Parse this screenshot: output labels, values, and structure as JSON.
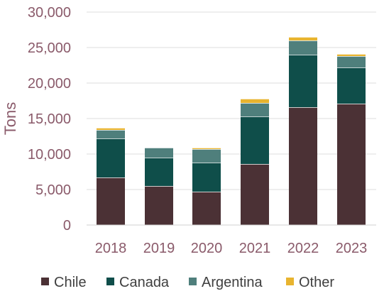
{
  "chart_data": {
    "type": "bar",
    "stacked": true,
    "categories": [
      "2018",
      "2019",
      "2020",
      "2021",
      "2022",
      "2023"
    ],
    "series": [
      {
        "name": "Chile",
        "color": "#4b3135",
        "values": [
          6700,
          5500,
          4700,
          8600,
          16600,
          17100
        ]
      },
      {
        "name": "Canada",
        "color": "#0f4e4a",
        "values": [
          5500,
          4000,
          4100,
          6700,
          7400,
          5100
        ]
      },
      {
        "name": "Argentina",
        "color": "#4f7f7c",
        "values": [
          1200,
          1400,
          1900,
          1900,
          2000,
          1600
        ]
      },
      {
        "name": "Other",
        "color": "#e8b42f",
        "values": [
          300,
          0,
          200,
          600,
          500,
          300
        ]
      }
    ],
    "ylabel": "Tons",
    "ylim": [
      0,
      30000
    ],
    "yticks": [
      0,
      5000,
      10000,
      15000,
      20000,
      25000,
      30000
    ],
    "ytick_labels": [
      "0",
      "5,000",
      "10,000",
      "15,000",
      "20,000",
      "25,000",
      "30,000"
    ],
    "grid": true,
    "legend_position": "bottom"
  }
}
